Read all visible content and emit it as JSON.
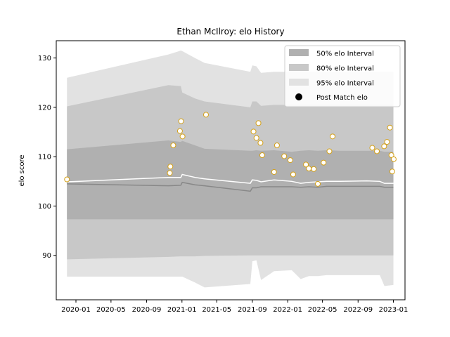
{
  "chart_data": {
    "type": "area",
    "title": "Ethan McIlroy: elo History",
    "xlabel": "",
    "ylabel": "elo score",
    "x_range": [
      "2019-10-25",
      "2023-02-10"
    ],
    "ylim": [
      81,
      133.5
    ],
    "y_ticks": [
      90,
      100,
      110,
      120,
      130
    ],
    "x_ticks": [
      "2020-01",
      "2020-05",
      "2020-09",
      "2021-01",
      "2021-05",
      "2021-09",
      "2022-01",
      "2022-05",
      "2022-09",
      "2023-01"
    ],
    "grid": false,
    "legend_position": "top-right",
    "legend": [
      {
        "label": "50% elo Interval",
        "color": "#b0b0b0"
      },
      {
        "label": "80% elo Interval",
        "color": "#c8c8c8"
      },
      {
        "label": "95% elo Interval",
        "color": "#e2e2e2"
      },
      {
        "label": "Post Match elo",
        "color": "#000000"
      }
    ],
    "colors": {
      "band50": "#b0b0b0",
      "band80": "#c8c8c8",
      "band95": "#e2e2e2",
      "median_line": "#888888",
      "mean_line": "#ffffff",
      "point_fill": "#ffffff",
      "point_edge": "#d4a017"
    },
    "bands": {
      "x": [
        "2019-12-01",
        "2020-11-15",
        "2020-12-28",
        "2021-01-02",
        "2021-02-15",
        "2021-03-20",
        "2021-08-25",
        "2021-09-01",
        "2021-09-15",
        "2021-10-01",
        "2021-11-15",
        "2022-01-15",
        "2022-02-15",
        "2022-03-15",
        "2022-04-15",
        "2022-05-15",
        "2022-07-01",
        "2022-10-01",
        "2022-11-15",
        "2022-12-01",
        "2023-01-01"
      ],
      "lo95": [
        85.7,
        85.7,
        85.7,
        85.7,
        84.5,
        83.5,
        84.2,
        88.8,
        89.0,
        85.0,
        86.8,
        87.0,
        85.2,
        85.8,
        85.8,
        86.0,
        86.0,
        86.0,
        86.0,
        83.8,
        84.0
      ],
      "lo80": [
        89.2,
        89.7,
        89.8,
        89.8,
        89.8,
        89.9,
        90.0,
        90.0,
        90.0,
        90.0,
        90.0,
        90.0,
        90.0,
        90.0,
        90.0,
        90.0,
        90.0,
        90.0,
        90.0,
        90.0,
        90.0
      ],
      "lo50": [
        97.3,
        97.3,
        97.3,
        97.3,
        97.3,
        97.3,
        97.3,
        97.3,
        97.3,
        97.3,
        97.3,
        97.3,
        97.3,
        97.3,
        97.3,
        97.3,
        97.3,
        97.3,
        97.3,
        97.3,
        97.3
      ],
      "hi50": [
        111.5,
        113.3,
        113.0,
        113.2,
        112.3,
        111.6,
        111.2,
        111.2,
        111.3,
        111.2,
        111.3,
        111.0,
        111.2,
        111.3,
        111.2,
        111.3,
        111.2,
        111.2,
        111.2,
        111.0,
        111.0
      ],
      "hi80": [
        120.2,
        124.5,
        124.3,
        123.0,
        121.8,
        121.2,
        120.0,
        121.2,
        121.2,
        120.3,
        120.5,
        120.5,
        120.5,
        120.5,
        120.5,
        120.5,
        120.5,
        120.5,
        120.5,
        120.5,
        120.5
      ],
      "hi95": [
        126.0,
        130.7,
        131.5,
        131.4,
        130.0,
        129.0,
        127.2,
        128.5,
        128.3,
        127.0,
        127.2,
        127.2,
        127.2,
        127.2,
        127.2,
        127.2,
        127.2,
        127.2,
        127.2,
        127.2,
        127.2
      ],
      "median": [
        104.5,
        104.1,
        104.2,
        104.8,
        104.3,
        104.1,
        103.0,
        103.7,
        103.7,
        103.9,
        103.9,
        103.9,
        103.8,
        103.9,
        103.8,
        104.0,
        104.0,
        104.0,
        104.0,
        103.8,
        103.8
      ],
      "mean": [
        104.9,
        105.8,
        105.8,
        106.4,
        105.8,
        105.5,
        104.6,
        105.3,
        105.2,
        104.9,
        105.3,
        105.0,
        104.6,
        104.8,
        104.9,
        105.0,
        105.0,
        105.1,
        105.0,
        104.6,
        104.6
      ]
    },
    "post_match": {
      "x": [
        "2019-12-01",
        "2020-11-20",
        "2020-11-22",
        "2020-12-02",
        "2020-12-25",
        "2020-12-29",
        "2021-01-03",
        "2021-03-25",
        "2021-09-05",
        "2021-09-15",
        "2021-09-22",
        "2021-09-29",
        "2021-10-05",
        "2021-11-15",
        "2021-11-25",
        "2021-12-20",
        "2022-01-10",
        "2022-01-20",
        "2022-03-05",
        "2022-03-15",
        "2022-04-01",
        "2022-04-15",
        "2022-05-05",
        "2022-05-25",
        "2022-06-05",
        "2022-10-20",
        "2022-11-05",
        "2022-11-30",
        "2022-12-10",
        "2022-12-20",
        "2022-12-25",
        "2022-12-28",
        "2023-01-02"
      ],
      "y": [
        105.4,
        106.7,
        108.0,
        112.3,
        115.2,
        117.2,
        114.1,
        118.5,
        115.1,
        113.8,
        116.8,
        112.8,
        110.3,
        106.9,
        112.3,
        110.1,
        109.3,
        106.4,
        108.4,
        107.6,
        107.5,
        104.5,
        108.8,
        111.1,
        114.1,
        111.8,
        111.1,
        112.1,
        113.0,
        115.9,
        110.3,
        107.0,
        109.5
      ]
    }
  }
}
